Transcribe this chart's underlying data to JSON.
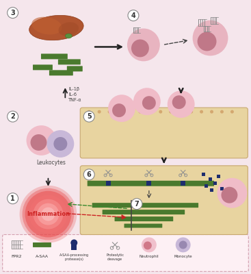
{
  "bg_color": "#f5e6ec",
  "tissue_color": "#e8d4a0",
  "tissue_edge": "#c8a870",
  "green_color": "#4a7a2e",
  "dark_blue": "#1e2d6e",
  "pink_cell_body": "#e8b4c0",
  "pink_nucleus": "#c07888",
  "purple_cell_body": "#c0aed0",
  "purple_nucleus": "#9080a8",
  "liver_color": "#a0522d",
  "liver_dark": "#7a3a1e",
  "gallbladder": "#4a7a2e",
  "cytokines": "IL-1β\nIL-6\nTNF-α",
  "label_leukocytes": "Leukocytes",
  "label_inflammation": "Inflammation",
  "legend_border": "#d4a0b0",
  "legend_bg": "#fdf0f4",
  "receptor_color": "#909090",
  "scissors_color": "#909090"
}
